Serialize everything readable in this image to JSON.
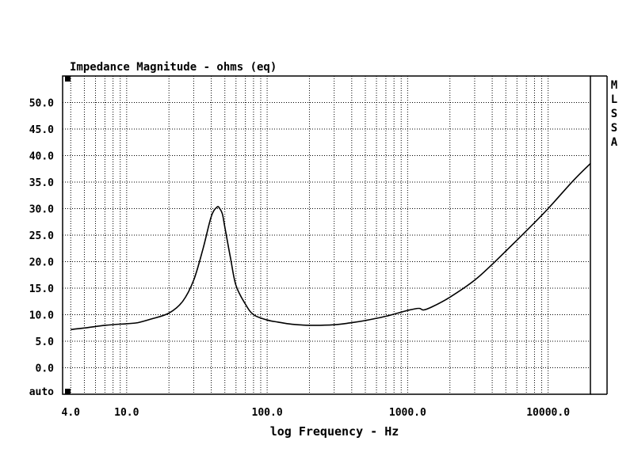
{
  "chart_data": {
    "type": "line",
    "title": "Impedance Magnitude - ohms (eq)",
    "xlabel": "log Frequency - Hz",
    "ylabel": "",
    "x_scale": "log",
    "xlim": [
      3.5,
      20000
    ],
    "ylim": [
      -5,
      55
    ],
    "grid": true,
    "y_ticks": [
      50,
      45,
      40,
      35,
      30,
      25,
      20,
      15,
      10,
      5,
      0
    ],
    "y_tick_labels": [
      "50.0",
      "45.0",
      "40.0",
      "35.0",
      "30.0",
      "25.0",
      "20.0",
      "15.0",
      "10.0",
      "5.0",
      "0.0"
    ],
    "y_bottom_label": "auto",
    "x_ticks": [
      4,
      10,
      100,
      1000,
      10000
    ],
    "x_tick_labels": [
      "4.0",
      "10.0",
      "100.0",
      "1000.0",
      "10000.0"
    ],
    "side_label": [
      "M",
      "L",
      "S",
      "S",
      "A"
    ],
    "series": [
      {
        "x": [
          4,
          5,
          7,
          10,
          12,
          15,
          20,
          25,
          30,
          35,
          40,
          44,
          46,
          48,
          50,
          55,
          60,
          70,
          80,
          100,
          120,
          150,
          200,
          300,
          400,
          500,
          700,
          1000,
          1200,
          1300,
          1500,
          2000,
          3000,
          4000,
          5000,
          7000,
          10000,
          15000,
          20000
        ],
        "y": [
          7.2,
          7.5,
          8.0,
          8.3,
          8.5,
          9.2,
          10.3,
          12.5,
          16.5,
          22.5,
          28.5,
          30.3,
          30.0,
          29.0,
          26.5,
          20.5,
          15.5,
          12.0,
          10.0,
          9.0,
          8.6,
          8.2,
          8.0,
          8.1,
          8.5,
          8.9,
          9.7,
          10.8,
          11.2,
          10.9,
          11.5,
          13.3,
          16.5,
          19.5,
          22.0,
          25.8,
          30.0,
          35.2,
          38.5
        ]
      }
    ]
  }
}
